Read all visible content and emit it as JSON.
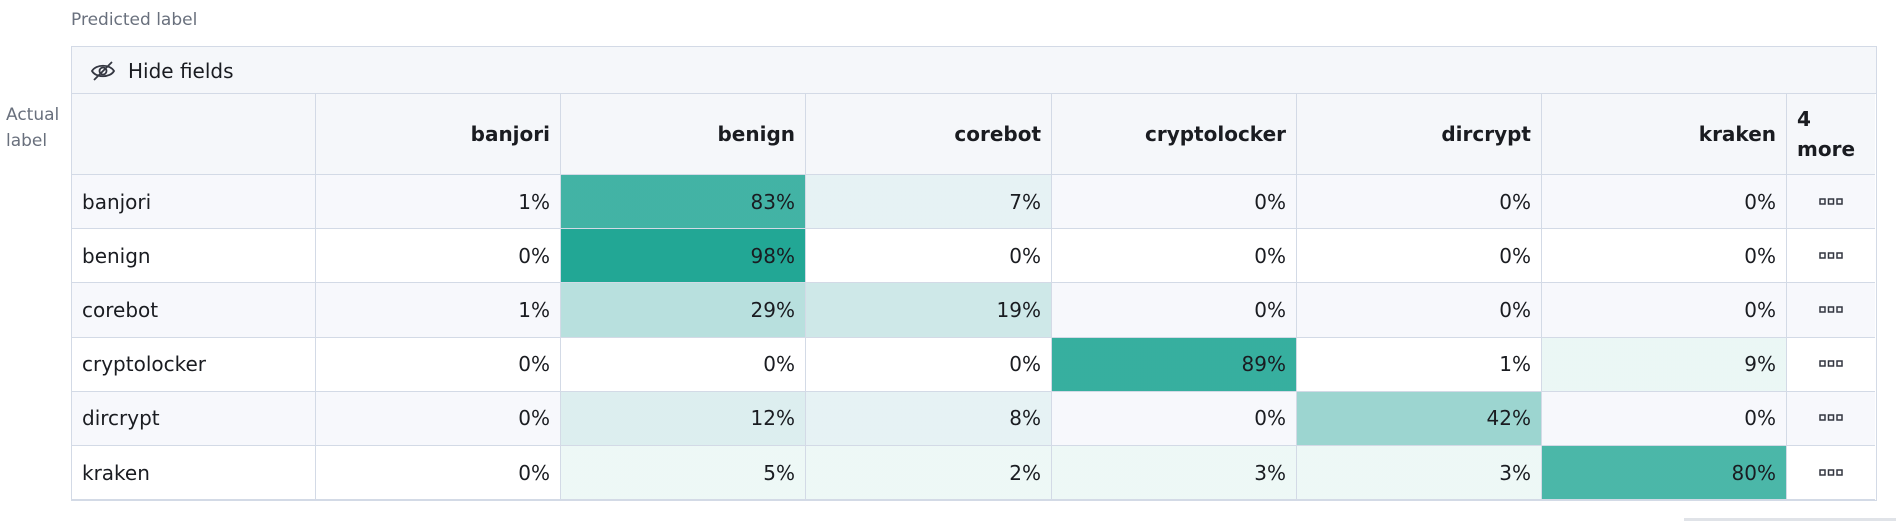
{
  "header": {
    "predicted_label": "Predicted label",
    "actual_label": "Actual label"
  },
  "toolbar": {
    "hide_fields": "Hide fields"
  },
  "table": {
    "columns": [
      "banjori",
      "benign",
      "corebot",
      "cryptolocker",
      "dircrypt",
      "kraken"
    ],
    "more_columns": "4 more",
    "rows": [
      {
        "label": "banjori",
        "cells": [
          "1%",
          "83%",
          "7%",
          "0%",
          "0%",
          "0%"
        ]
      },
      {
        "label": "benign",
        "cells": [
          "0%",
          "98%",
          "0%",
          "0%",
          "0%",
          "0%"
        ]
      },
      {
        "label": "corebot",
        "cells": [
          "1%",
          "29%",
          "19%",
          "0%",
          "0%",
          "0%"
        ]
      },
      {
        "label": "cryptolocker",
        "cells": [
          "0%",
          "0%",
          "0%",
          "89%",
          "1%",
          "9%"
        ]
      },
      {
        "label": "dircrypt",
        "cells": [
          "0%",
          "12%",
          "8%",
          "0%",
          "42%",
          "0%"
        ]
      },
      {
        "label": "kraken",
        "cells": [
          "0%",
          "5%",
          "2%",
          "3%",
          "3%",
          "80%"
        ]
      }
    ]
  }
}
